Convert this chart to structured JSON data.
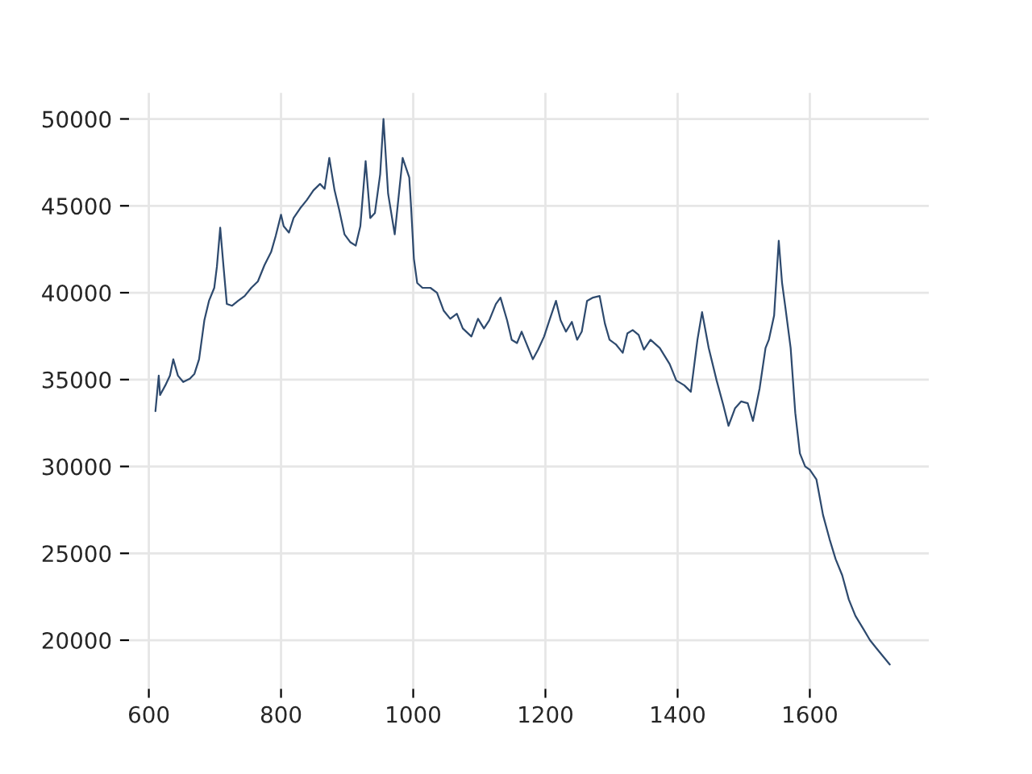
{
  "chart_data": {
    "type": "line",
    "xlim": [
      570,
      1780
    ],
    "ylim": [
      17200,
      51500
    ],
    "xticks": [
      600,
      800,
      1000,
      1200,
      1400,
      1600
    ],
    "yticks": [
      20000,
      25000,
      30000,
      35000,
      40000,
      45000,
      50000
    ],
    "grid": true,
    "marker": "none",
    "line_style": "solid",
    "series": [
      {
        "color": "#2e4a6e",
        "x": [
          610,
          615,
          617,
          625,
          632,
          637,
          644,
          652,
          662,
          669,
          676,
          684,
          691,
          699,
          703,
          708,
          713,
          718,
          726,
          735,
          745,
          755,
          765,
          775,
          785,
          792,
          800,
          804,
          812,
          819,
          829,
          839,
          849,
          859,
          866,
          873,
          881,
          888,
          896,
          905,
          913,
          920,
          928,
          935,
          942,
          950,
          955,
          962,
          972,
          984,
          994,
          997,
          1001,
          1006,
          1014,
          1026,
          1036,
          1046,
          1056,
          1066,
          1075,
          1088,
          1098,
          1107,
          1115,
          1125,
          1132,
          1142,
          1149,
          1157,
          1164,
          1174,
          1181,
          1189,
          1198,
          1206,
          1216,
          1223,
          1231,
          1240,
          1248,
          1255,
          1263,
          1272,
          1282,
          1290,
          1297,
          1307,
          1317,
          1324,
          1332,
          1341,
          1349,
          1359,
          1373,
          1388,
          1398,
          1410,
          1420,
          1430,
          1437,
          1447,
          1459,
          1469,
          1477,
          1487,
          1496,
          1506,
          1514,
          1524,
          1533,
          1538,
          1546,
          1553,
          1558,
          1563,
          1571,
          1578,
          1585,
          1593,
          1600,
          1610,
          1620,
          1630,
          1639,
          1649,
          1659,
          1669,
          1681,
          1691,
          1701,
          1711,
          1721
        ],
        "values": [
          33180,
          35230,
          34110,
          34670,
          35230,
          36170,
          35230,
          34860,
          35050,
          35330,
          36170,
          38410,
          39530,
          40280,
          41500,
          43740,
          41500,
          39350,
          39250,
          39530,
          39810,
          40280,
          40650,
          41590,
          42340,
          43270,
          44490,
          43830,
          43460,
          44300,
          44860,
          45330,
          45890,
          46260,
          45980,
          47760,
          45890,
          44770,
          43360,
          42900,
          42710,
          43830,
          47570,
          44300,
          44580,
          46820,
          50000,
          45700,
          43360,
          47760,
          46630,
          44770,
          41960,
          40560,
          40280,
          40280,
          40000,
          38970,
          38500,
          38790,
          37940,
          37480,
          38500,
          37940,
          38410,
          39350,
          39720,
          38410,
          37290,
          37100,
          37760,
          36820,
          36170,
          36730,
          37480,
          38410,
          39530,
          38410,
          37760,
          38320,
          37290,
          37760,
          39530,
          39720,
          39810,
          38220,
          37290,
          37010,
          36540,
          37660,
          37850,
          37570,
          36730,
          37290,
          36820,
          35890,
          34950,
          34670,
          34300,
          37290,
          38880,
          36820,
          34950,
          33550,
          32340,
          33360,
          33740,
          33640,
          32620,
          34480,
          36820,
          37290,
          38690,
          42990,
          40560,
          39160,
          36820,
          33080,
          30750,
          30000,
          29810,
          29250,
          27200,
          25800,
          24670,
          23740,
          22340,
          21400,
          20650,
          20000,
          19530,
          19060,
          18600
        ]
      }
    ]
  }
}
